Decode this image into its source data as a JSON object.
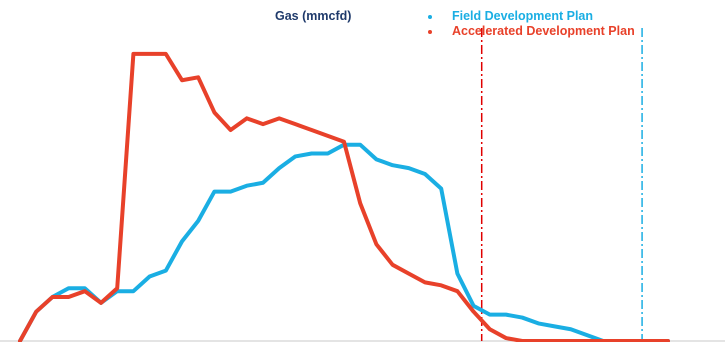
{
  "chart_data": {
    "type": "line",
    "title": "Gas (mmcfd)",
    "xlabel": "",
    "ylabel": "",
    "grid": false,
    "legend_position": "top-right",
    "x": [
      0,
      1,
      2,
      3,
      4,
      5,
      6,
      7,
      8,
      9,
      10,
      11,
      12,
      13,
      14,
      15,
      16,
      17,
      18,
      19,
      20,
      21,
      22,
      23,
      24,
      25,
      26,
      27,
      28,
      29,
      30,
      31,
      32,
      33,
      34,
      35,
      36,
      37,
      38,
      39,
      40
    ],
    "xlim": [
      0,
      40
    ],
    "ylim": [
      0,
      100
    ],
    "series": [
      {
        "name": "Field Development Plan",
        "color": "#1aaee3",
        "values": [
          0,
          10,
          15,
          18,
          18,
          13,
          17,
          17,
          22,
          24,
          34,
          41,
          51,
          51,
          53,
          54,
          59,
          63,
          64,
          64,
          67,
          67,
          62,
          60,
          59,
          57,
          52,
          23,
          12,
          9,
          9,
          8,
          6,
          5,
          4,
          2,
          0,
          0,
          0,
          0,
          0
        ]
      },
      {
        "name": "Accelerated Development Plan",
        "color": "#e8412a",
        "values": [
          0,
          10,
          15,
          15,
          17,
          13,
          18,
          98,
          98,
          98,
          89,
          90,
          78,
          72,
          76,
          74,
          76,
          74,
          72,
          70,
          68,
          47,
          33,
          26,
          23,
          20,
          19,
          17,
          10,
          4,
          1,
          0,
          0,
          0,
          0,
          0,
          0,
          0,
          0,
          0,
          0
        ]
      }
    ],
    "markers": [
      {
        "x": 28.5,
        "color": "#e00000",
        "style": "dash-dot"
      },
      {
        "x": 38.4,
        "color": "#1aaee3",
        "style": "dash-dot"
      }
    ]
  }
}
